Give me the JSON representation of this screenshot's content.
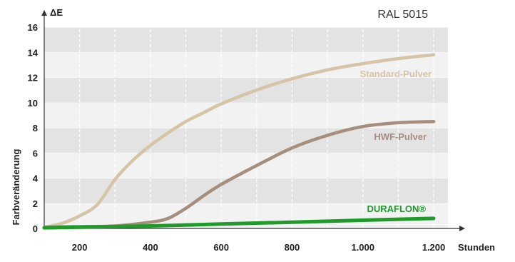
{
  "chart_data": {
    "type": "line",
    "title": "RAL 5015",
    "xlabel": "Stunden",
    "ylabel": "Farbveränderung",
    "yaxis_symbol": "ΔE",
    "xlim": [
      100,
      1200
    ],
    "ylim": [
      0,
      16
    ],
    "x_ticks": [
      {
        "value": 200,
        "label": "200"
      },
      {
        "value": 400,
        "label": "400"
      },
      {
        "value": 600,
        "label": "600"
      },
      {
        "value": 800,
        "label": "800"
      },
      {
        "value": 1000,
        "label": "1.000"
      },
      {
        "value": 1200,
        "label": "1.200"
      }
    ],
    "y_ticks": [
      {
        "value": 0,
        "label": "0"
      },
      {
        "value": 2,
        "label": "2"
      },
      {
        "value": 4,
        "label": "4"
      },
      {
        "value": 6,
        "label": "6"
      },
      {
        "value": 8,
        "label": "8"
      },
      {
        "value": 10,
        "label": "10"
      },
      {
        "value": 12,
        "label": "12"
      },
      {
        "value": 14,
        "label": "14"
      },
      {
        "value": 16,
        "label": "16"
      }
    ],
    "grid": true,
    "series": [
      {
        "name": "Standard-Pulver",
        "color": "#d5c4a6",
        "points": [
          [
            100,
            0.1
          ],
          [
            150,
            0.4
          ],
          [
            200,
            1.0
          ],
          [
            250,
            1.9
          ],
          [
            300,
            3.9
          ],
          [
            350,
            5.4
          ],
          [
            400,
            6.6
          ],
          [
            450,
            7.6
          ],
          [
            500,
            8.5
          ],
          [
            550,
            9.2
          ],
          [
            600,
            9.9
          ],
          [
            700,
            11.0
          ],
          [
            800,
            11.9
          ],
          [
            900,
            12.6
          ],
          [
            1000,
            13.1
          ],
          [
            1100,
            13.5
          ],
          [
            1200,
            13.8
          ]
        ]
      },
      {
        "name": "HWF-Pulver",
        "color": "#a58e7e",
        "points": [
          [
            100,
            0.1
          ],
          [
            200,
            0.15
          ],
          [
            300,
            0.2
          ],
          [
            400,
            0.5
          ],
          [
            450,
            0.8
          ],
          [
            500,
            1.6
          ],
          [
            550,
            2.6
          ],
          [
            600,
            3.5
          ],
          [
            700,
            5.0
          ],
          [
            800,
            6.4
          ],
          [
            900,
            7.4
          ],
          [
            1000,
            8.1
          ],
          [
            1100,
            8.4
          ],
          [
            1200,
            8.5
          ]
        ]
      },
      {
        "name": "DURAFLON®",
        "color": "#1f9a2b",
        "points": [
          [
            100,
            0.05
          ],
          [
            200,
            0.1
          ],
          [
            400,
            0.2
          ],
          [
            600,
            0.35
          ],
          [
            800,
            0.5
          ],
          [
            1000,
            0.65
          ],
          [
            1200,
            0.8
          ]
        ]
      }
    ]
  }
}
